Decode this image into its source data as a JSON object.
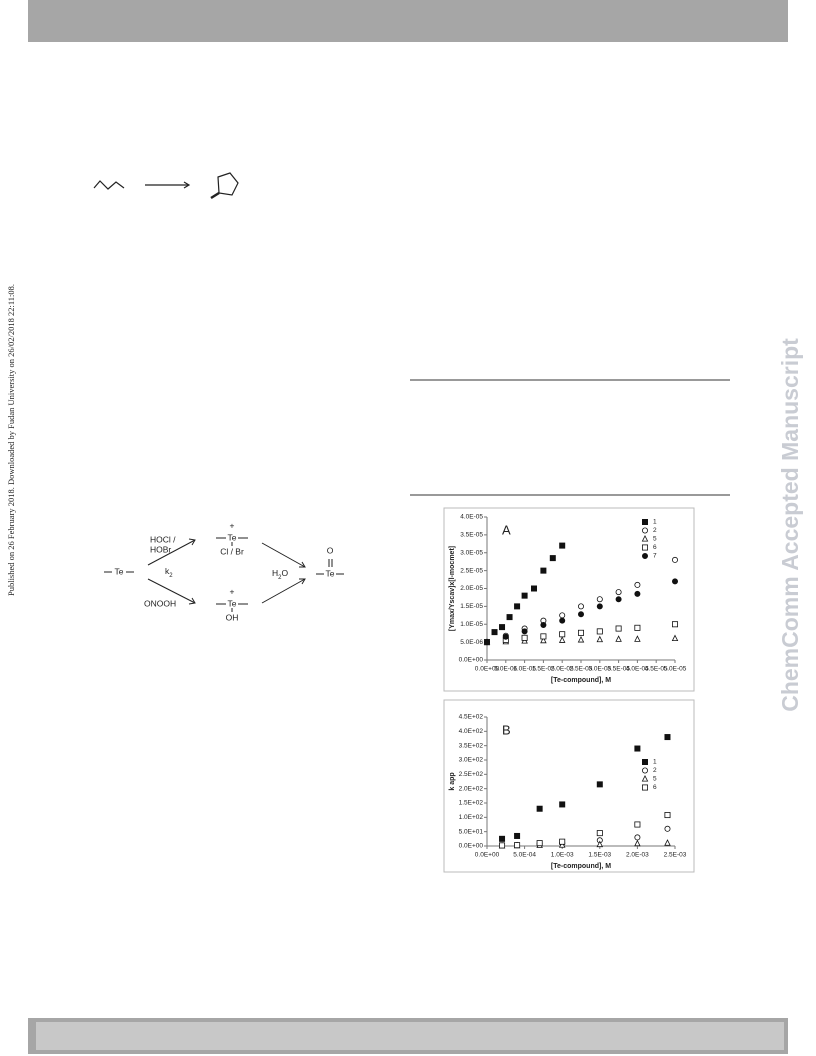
{
  "side_note": "Published on 26 February 2018. Downloaded by Fudan University on 26/02/2018 22:11:08.",
  "watermark": "ChemComm Accepted Manuscript",
  "scheme": {
    "hocl": "HOCl /",
    "hobr": "HOBr",
    "k": "k",
    "k_sub": "2",
    "onooh": "ONOOH",
    "te_left": "Te",
    "plus_top": "+",
    "te_top": "Te",
    "clbr": "Cl / Br",
    "plus_bottom": "+",
    "te_bottom": "Te",
    "oh": "OH",
    "h2o_h": "H",
    "h2o_sub": "2",
    "h2o_o": "O",
    "o": "O",
    "te_right": "Te"
  },
  "chart_data": [
    {
      "type": "scatter",
      "annotation": "A",
      "ylabel": "[Ymax/Yscav]x[l-mocmet]",
      "xlabel": "[Te-compound], M",
      "legend": "upper right",
      "xlim": [
        0,
        5e-05
      ],
      "ylim": [
        0,
        4e-05
      ],
      "xticks": [
        {
          "value": 0,
          "label": "0.0E+00"
        },
        {
          "value": 5e-06,
          "label": "5.0E-06"
        },
        {
          "value": 1e-05,
          "label": "1.0E-05"
        },
        {
          "value": 1.5e-05,
          "label": "1.5E-05"
        },
        {
          "value": 2e-05,
          "label": "2.0E-05"
        },
        {
          "value": 2.5e-05,
          "label": "2.5E-05"
        },
        {
          "value": 3e-05,
          "label": "3.0E-05"
        },
        {
          "value": 3.5e-05,
          "label": "3.5E-05"
        },
        {
          "value": 4e-05,
          "label": "4.0E-05"
        },
        {
          "value": 4.5e-05,
          "label": "4.5E-05"
        },
        {
          "value": 5e-05,
          "label": "5.0E-05"
        }
      ],
      "yticks": [
        {
          "value": 0,
          "label": "0.0E+00"
        },
        {
          "value": 5e-06,
          "label": "5.0E-06"
        },
        {
          "value": 1e-05,
          "label": "1.0E-05"
        },
        {
          "value": 1.5e-05,
          "label": "1.5E-05"
        },
        {
          "value": 2e-05,
          "label": "2.0E-05"
        },
        {
          "value": 2.5e-05,
          "label": "2.5E-05"
        },
        {
          "value": 3e-05,
          "label": "3.0E-05"
        },
        {
          "value": 3.5e-05,
          "label": "3.5E-05"
        },
        {
          "value": 4e-05,
          "label": "4.0E-05"
        }
      ],
      "series": [
        {
          "name": "1",
          "marker": "filled-square",
          "color": "#111",
          "x": [
            0,
            2e-06,
            4e-06,
            6e-06,
            8e-06,
            1e-05,
            1.25e-05,
            1.5e-05,
            1.75e-05,
            2e-05
          ],
          "values": [
            5e-06,
            7.8e-06,
            9.2e-06,
            1.2e-05,
            1.5e-05,
            1.8e-05,
            2e-05,
            2.5e-05,
            2.85e-05,
            3.2e-05
          ]
        },
        {
          "name": "2",
          "marker": "open-circle",
          "color": "#111",
          "x": [
            0,
            5e-06,
            1e-05,
            1.5e-05,
            2e-05,
            2.5e-05,
            3e-05,
            3.5e-05,
            4e-05,
            5e-05
          ],
          "values": [
            5e-06,
            6.8e-06,
            8.8e-06,
            1.1e-05,
            1.25e-05,
            1.5e-05,
            1.7e-05,
            1.9e-05,
            2.1e-05,
            2.8e-05
          ]
        },
        {
          "name": "5",
          "marker": "open-triangle",
          "color": "#111",
          "x": [
            0,
            5e-06,
            1e-05,
            1.5e-05,
            2e-05,
            2.5e-05,
            3e-05,
            3.5e-05,
            4e-05,
            5e-05
          ],
          "values": [
            5e-06,
            5.1e-06,
            5.3e-06,
            5.4e-06,
            5.5e-06,
            5.6e-06,
            5.7e-06,
            5.8e-06,
            5.8e-06,
            6e-06
          ]
        },
        {
          "name": "6",
          "marker": "open-square",
          "color": "#111",
          "x": [
            0,
            5e-06,
            1e-05,
            1.5e-05,
            2e-05,
            2.5e-05,
            3e-05,
            3.5e-05,
            4e-05,
            5e-05
          ],
          "values": [
            5e-06,
            5.6e-06,
            6.2e-06,
            6.6e-06,
            7.2e-06,
            7.6e-06,
            8e-06,
            8.8e-06,
            9e-06,
            1e-05
          ]
        },
        {
          "name": "7",
          "marker": "filled-circle",
          "color": "#111",
          "x": [
            0,
            5e-06,
            1e-05,
            1.5e-05,
            2e-05,
            2.5e-05,
            3e-05,
            3.5e-05,
            4e-05,
            5e-05
          ],
          "values": [
            5e-06,
            6.5e-06,
            8e-06,
            9.8e-06,
            1.1e-05,
            1.28e-05,
            1.5e-05,
            1.7e-05,
            1.85e-05,
            2.2e-05
          ]
        }
      ]
    },
    {
      "type": "scatter",
      "annotation": "B",
      "ylabel": "k app",
      "xlabel": "[Te-compound], M",
      "legend": "right",
      "xlim": [
        0,
        0.0025
      ],
      "ylim": [
        0,
        450
      ],
      "xticks": [
        {
          "value": 0,
          "label": "0.0E+00"
        },
        {
          "value": 0.0005,
          "label": "5.0E-04"
        },
        {
          "value": 0.001,
          "label": "1.0E-03"
        },
        {
          "value": 0.0015,
          "label": "1.5E-03"
        },
        {
          "value": 0.002,
          "label": "2.0E-03"
        },
        {
          "value": 0.0025,
          "label": "2.5E-03"
        }
      ],
      "yticks": [
        {
          "value": 0,
          "label": "0.0E+00"
        },
        {
          "value": 50,
          "label": "5.0E+01"
        },
        {
          "value": 100,
          "label": "1.0E+02"
        },
        {
          "value": 150,
          "label": "1.5E+02"
        },
        {
          "value": 200,
          "label": "2.0E+02"
        },
        {
          "value": 250,
          "label": "2.5E+02"
        },
        {
          "value": 300,
          "label": "3.0E+02"
        },
        {
          "value": 350,
          "label": "3.5E+02"
        },
        {
          "value": 400,
          "label": "4.0E+02"
        },
        {
          "value": 450,
          "label": "4.5E+02"
        }
      ],
      "series": [
        {
          "name": "1",
          "marker": "filled-square",
          "color": "#111",
          "x": [
            0.0002,
            0.0004,
            0.0007,
            0.001,
            0.0015,
            0.002,
            0.0024
          ],
          "values": [
            25,
            35,
            130,
            145,
            215,
            340,
            380
          ]
        },
        {
          "name": "2",
          "marker": "open-circle",
          "color": "#111",
          "x": [
            0.0002,
            0.0004,
            0.0007,
            0.001,
            0.0015,
            0.002,
            0.0024
          ],
          "values": [
            2,
            3,
            8,
            10,
            20,
            30,
            60
          ]
        },
        {
          "name": "5",
          "marker": "open-triangle",
          "color": "#111",
          "x": [
            0.0002,
            0.0004,
            0.0007,
            0.001,
            0.0015,
            0.002,
            0.0024
          ],
          "values": [
            0,
            1,
            2,
            3,
            5,
            8,
            10
          ]
        },
        {
          "name": "6",
          "marker": "open-square",
          "color": "#111",
          "x": [
            0.0002,
            0.0004,
            0.0007,
            0.001,
            0.0015,
            0.002,
            0.0024
          ],
          "values": [
            2,
            3,
            10,
            15,
            45,
            75,
            108
          ]
        }
      ]
    }
  ]
}
